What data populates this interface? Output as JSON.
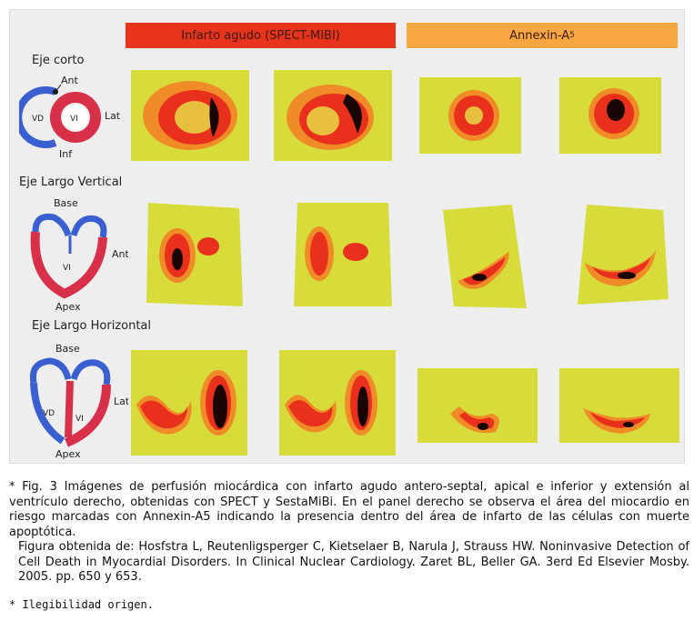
{
  "figure": {
    "headers": {
      "left": "Infarto agudo (SPECT-MIBI)",
      "right_base": "Annexin-A",
      "right_sub": "5"
    },
    "rows": [
      {
        "label": "Eje corto",
        "diagram_labels": [
          "Ant",
          "Lat",
          "Inf",
          "VD",
          "VI"
        ]
      },
      {
        "label": "Eje Largo Vertical",
        "diagram_labels": [
          "Base",
          "Ant",
          "VI",
          "Apex"
        ]
      },
      {
        "label": "Eje Largo Horizontal",
        "diagram_labels": [
          "Base",
          "Lat",
          "VD",
          "VI",
          "Apex"
        ]
      }
    ]
  },
  "caption": {
    "line1": "* Fig. 3  Imágenes de perfusión miocárdica con infarto agudo antero-septal, apical e inferior y extensión al ventrículo derecho, obtenidas con SPECT y SestaMiBi. En el panel derecho se observa el área del miocardio en riesgo marcadas con Annexin-A5 indicando la presencia dentro del área de infarto de las células con muerte apoptótica.",
    "line2": "Figura obtenida de: Hosfstra L, Reutenligsperger C, Kietselaer B, Narula J, Strauss HW. Noninvasive Detection of Cell Death in Myocardial Disorders. In Clinical Nuclear Cardiology. Zaret BL, Beller GA. 3erd Ed Elsevier Mosby. 2005. pp. 650 y 653."
  },
  "footnote": "* Ilegibilidad origen.",
  "colors": {
    "red_header": "#e8341c",
    "orange_header": "#f7a640",
    "scan_background": "#d7dc3a",
    "scan_red": "#e8301c",
    "scan_dark": "#1a0505",
    "heart_blue": "#3a5fd0",
    "heart_red": "#d83048"
  }
}
